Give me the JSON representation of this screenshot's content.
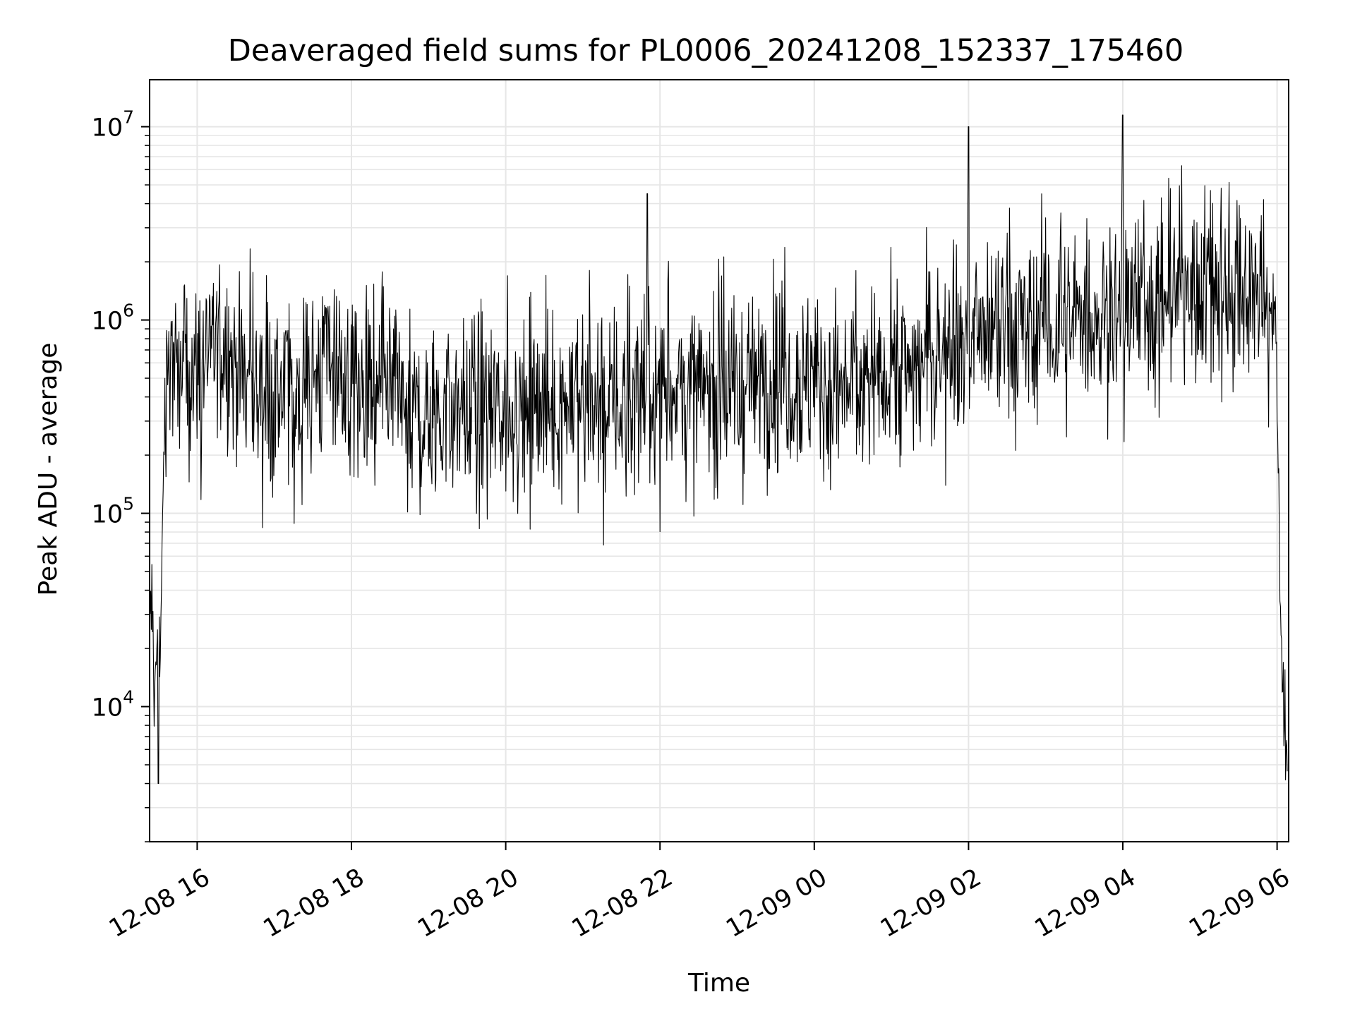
{
  "chart_data": {
    "type": "line",
    "title": "Deaveraged field sums for PL0006_20241208_152337_175460",
    "xlabel": "Time",
    "ylabel": "Peak ADU - average",
    "yscale": "log",
    "ylim": [
      2000,
      17500000
    ],
    "xlim": [
      "2024-12-08 15:23",
      "2024-12-09 06:09"
    ],
    "grid": true,
    "line_color": "#000000",
    "grid_color": "#e6e6e6",
    "x_ticks": [
      {
        "value": "2024-12-08 16:00",
        "label": "12-08 16"
      },
      {
        "value": "2024-12-08 18:00",
        "label": "12-08 18"
      },
      {
        "value": "2024-12-08 20:00",
        "label": "12-08 20"
      },
      {
        "value": "2024-12-08 22:00",
        "label": "12-08 22"
      },
      {
        "value": "2024-12-09 00:00",
        "label": "12-09 00"
      },
      {
        "value": "2024-12-09 02:00",
        "label": "12-09 02"
      },
      {
        "value": "2024-12-09 04:00",
        "label": "12-09 04"
      },
      {
        "value": "2024-12-09 06:00",
        "label": "12-09 06"
      }
    ],
    "y_ticks": [
      {
        "value": 10000,
        "base": "10",
        "exp": "4"
      },
      {
        "value": 100000,
        "base": "10",
        "exp": "5"
      },
      {
        "value": 1000000,
        "base": "10",
        "exp": "6"
      },
      {
        "value": 10000000,
        "base": "10",
        "exp": "7"
      }
    ],
    "series": [
      {
        "x": [
          "2024-12-08 15:23",
          "2024-12-08 15:25",
          "2024-12-08 15:27",
          "2024-12-08 15:29",
          "2024-12-08 15:31",
          "2024-12-08 15:33",
          "2024-12-08 15:35",
          "2024-12-08 15:40",
          "2024-12-08 15:45",
          "2024-12-08 16:00",
          "2024-12-08 16:15",
          "2024-12-08 16:30",
          "2024-12-08 16:45",
          "2024-12-08 17:00",
          "2024-12-08 17:15",
          "2024-12-08 17:30",
          "2024-12-08 17:45",
          "2024-12-08 18:00",
          "2024-12-08 18:15",
          "2024-12-08 18:30",
          "2024-12-08 18:45",
          "2024-12-08 19:00",
          "2024-12-08 19:15",
          "2024-12-08 19:30",
          "2024-12-08 19:45",
          "2024-12-08 20:00",
          "2024-12-08 20:15",
          "2024-12-08 20:30",
          "2024-12-08 20:45",
          "2024-12-08 21:00",
          "2024-12-08 21:15",
          "2024-12-08 21:30",
          "2024-12-08 21:45",
          "2024-12-08 22:00",
          "2024-12-08 22:15",
          "2024-12-08 22:30",
          "2024-12-08 22:45",
          "2024-12-08 23:00",
          "2024-12-08 23:15",
          "2024-12-08 23:30",
          "2024-12-08 23:45",
          "2024-12-09 00:00",
          "2024-12-09 00:15",
          "2024-12-09 00:30",
          "2024-12-09 00:45",
          "2024-12-09 01:00",
          "2024-12-09 01:15",
          "2024-12-09 01:30",
          "2024-12-09 01:45",
          "2024-12-09 02:00",
          "2024-12-09 02:15",
          "2024-12-09 02:30",
          "2024-12-09 02:45",
          "2024-12-09 03:00",
          "2024-12-09 03:15",
          "2024-12-09 03:30",
          "2024-12-09 03:45",
          "2024-12-09 04:00",
          "2024-12-09 04:15",
          "2024-12-09 04:30",
          "2024-12-09 04:45",
          "2024-12-09 05:00",
          "2024-12-09 05:15",
          "2024-12-09 05:30",
          "2024-12-09 05:45",
          "2024-12-09 05:58",
          "2024-12-09 06:00",
          "2024-12-09 06:02",
          "2024-12-09 06:04",
          "2024-12-09 06:06",
          "2024-12-09 06:08"
        ],
        "y": [
          20000,
          35000,
          9000,
          30000,
          15000,
          60000,
          500000,
          650000,
          480000,
          550000,
          800000,
          600000,
          450000,
          400000,
          420000,
          500000,
          700000,
          380000,
          350000,
          400000,
          330000,
          300000,
          340000,
          360000,
          320000,
          350000,
          330000,
          360000,
          380000,
          400000,
          380000,
          350000,
          420000,
          430000,
          460000,
          400000,
          450000,
          420000,
          500000,
          550000,
          500000,
          480000,
          430000,
          460000,
          500000,
          600000,
          550000,
          650000,
          800000,
          700000,
          750000,
          900000,
          800000,
          950000,
          850000,
          1100000,
          1000000,
          1150000,
          1300000,
          1250000,
          1400000,
          1500000,
          1450000,
          1350000,
          1300000,
          1200000,
          400000,
          35000,
          15000,
          8000,
          3500
        ]
      }
    ],
    "annotations": [
      {
        "x": "2024-12-08 21:50",
        "y": 4500000
      },
      {
        "x": "2024-12-09 02:00",
        "y": 10000000
      },
      {
        "x": "2024-12-09 04:00",
        "y": 11500000
      },
      {
        "x": "2024-12-08 15:30",
        "y": 4000
      }
    ]
  }
}
